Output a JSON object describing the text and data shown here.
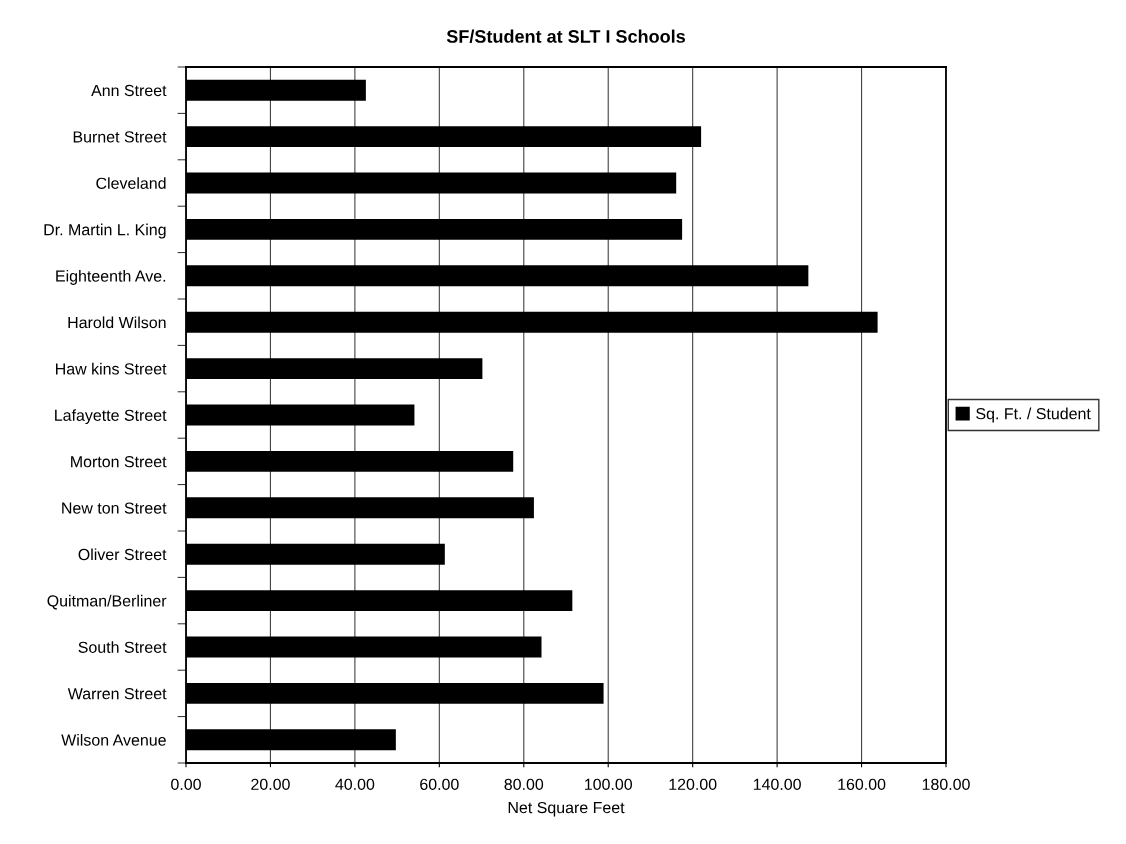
{
  "chart_data": {
    "type": "bar",
    "orientation": "horizontal",
    "title": "SF/Student at SLT I Schools",
    "xlabel": "Net Square Feet",
    "categories": [
      "Ann Street",
      "Burnet Street",
      "Cleveland",
      "Dr. Martin L. King",
      "Eighteenth Ave.",
      "Harold Wilson",
      "Haw kins Street",
      "Lafayette Street",
      "Morton Street",
      "New ton Street",
      "Oliver Street",
      "Quitman/Berliner",
      "South Street",
      "Warren Street",
      "Wilson Avenue"
    ],
    "series": [
      {
        "name": "Sq. Ft. / Student",
        "color": "#000000",
        "values": [
          42.6,
          122.0,
          116.1,
          117.5,
          147.4,
          163.8,
          70.2,
          54.1,
          77.5,
          82.4,
          61.3,
          91.5,
          84.2,
          98.9,
          49.7
        ]
      }
    ],
    "xlim": [
      0,
      180
    ],
    "xticks": [
      {
        "value": 0,
        "label": "0.00"
      },
      {
        "value": 20,
        "label": "20.00"
      },
      {
        "value": 40,
        "label": "40.00"
      },
      {
        "value": 60,
        "label": "60.00"
      },
      {
        "value": 80,
        "label": "80.00"
      },
      {
        "value": 100,
        "label": "100.00"
      },
      {
        "value": 120,
        "label": "120.00"
      },
      {
        "value": 140,
        "label": "140.00"
      },
      {
        "value": 160,
        "label": "160.00"
      },
      {
        "value": 180,
        "label": "180.00"
      }
    ],
    "grid": "x",
    "legend": "right"
  }
}
